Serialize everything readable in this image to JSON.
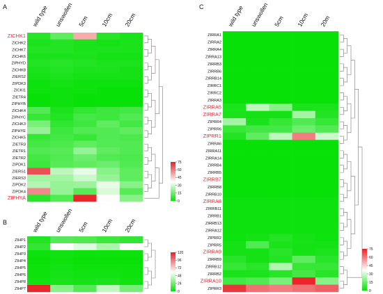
{
  "chart_data": [
    {
      "panel": "A",
      "type": "heatmap",
      "columns": [
        "wild type",
        "unswollen",
        "5cm",
        "10cm",
        "20cm"
      ],
      "rows": [
        "ZICHK1",
        "ZICHK2",
        "ZICHK7",
        "ZICHK6",
        "ZIPHYD",
        "ZICHK8",
        "ZIERS2",
        "ZIPDK3",
        "ZICKI1",
        "ZIETR4",
        "ZIPHYB",
        "ZICHK4",
        "ZIPHYC",
        "ZICHK3",
        "ZIPHYE",
        "ZICHK5",
        "ZIETR3",
        "ZIETR1",
        "ZIETR2",
        "ZIPDK1",
        "ZIERS1",
        "ZIERS3",
        "ZIPDK2",
        "ZIPDK4",
        "ZIPHYA"
      ],
      "highlighted_rows": [
        "ZICHK1",
        "ZIPHYA"
      ],
      "values": [
        [
          6,
          14,
          52,
          6,
          4
        ],
        [
          4,
          5,
          4,
          3,
          4
        ],
        [
          5,
          5,
          4,
          4,
          4
        ],
        [
          4,
          4,
          4,
          3,
          3
        ],
        [
          5,
          6,
          5,
          4,
          4
        ],
        [
          4,
          5,
          4,
          4,
          3
        ],
        [
          3,
          4,
          3,
          3,
          3
        ],
        [
          2,
          3,
          2,
          2,
          2
        ],
        [
          2,
          2,
          2,
          1,
          1
        ],
        [
          1,
          2,
          1,
          1,
          1
        ],
        [
          1,
          2,
          1,
          1,
          1
        ],
        [
          12,
          4,
          7,
          9,
          10
        ],
        [
          8,
          5,
          10,
          9,
          12
        ],
        [
          18,
          7,
          9,
          14,
          10
        ],
        [
          22,
          9,
          12,
          12,
          14
        ],
        [
          8,
          10,
          8,
          12,
          11
        ],
        [
          10,
          11,
          14,
          12,
          12
        ],
        [
          12,
          13,
          22,
          14,
          12
        ],
        [
          10,
          12,
          16,
          12,
          11
        ],
        [
          9,
          13,
          14,
          16,
          12
        ],
        [
          68,
          28,
          34,
          20,
          14
        ],
        [
          24,
          24,
          30,
          22,
          14
        ],
        [
          26,
          22,
          23,
          34,
          20
        ],
        [
          58,
          22,
          13,
          32,
          13
        ],
        [
          6,
          12,
          75,
          38,
          20
        ]
      ],
      "scale": {
        "min": 0,
        "max": 75,
        "ticks": [
          75,
          60,
          45,
          30,
          15,
          0
        ]
      }
    },
    {
      "panel": "B",
      "type": "heatmap",
      "columns": [
        "wild type",
        "unswollen",
        "5cm",
        "10cm",
        "20cm"
      ],
      "rows": [
        "ZIHP1",
        "ZIHP2",
        "ZIHP3",
        "ZIHP4",
        "ZIHP5",
        "ZIHP6",
        "ZIHP8",
        "ZIHP7"
      ],
      "highlighted_rows": [],
      "values": [
        [
          8,
          20,
          18,
          14,
          12
        ],
        [
          12,
          60,
          52,
          40,
          60
        ],
        [
          3,
          4,
          3,
          3,
          3
        ],
        [
          2,
          3,
          2,
          2,
          2
        ],
        [
          3,
          4,
          3,
          3,
          3
        ],
        [
          3,
          5,
          4,
          4,
          3
        ],
        [
          4,
          6,
          5,
          6,
          4
        ],
        [
          120,
          32,
          20,
          45,
          28
        ]
      ],
      "scale": {
        "min": 0,
        "max": 120,
        "ticks": [
          120,
          96,
          72,
          48,
          24,
          0
        ]
      }
    },
    {
      "panel": "C",
      "type": "heatmap",
      "columns": [
        "wild type",
        "unswollen",
        "5cm",
        "10cm",
        "20m"
      ],
      "rows": [
        "ZIRRA1",
        "ZIRRA2",
        "ZIRRA4",
        "ZIRRA13",
        "ZIRRB3",
        "ZIRRB6",
        "ZIRRB14",
        "ZIRRC1",
        "ZIRRC2",
        "ZIRRA3",
        "ZIRRA5",
        "ZIRRA7",
        "ZIPRR4",
        "ZIPRR6",
        "ZIPRR1",
        "ZIRRA6",
        "ZIRRA11",
        "ZIRRA14",
        "ZIRRB4",
        "ZIRRB5",
        "ZIRRB7",
        "ZIRRB8",
        "ZIRRB10",
        "ZIRRA8",
        "ZIRRB11",
        "ZIRRB1",
        "ZIRRB13",
        "ZIRRA12",
        "ZIPRR2",
        "ZIPRR5",
        "ZIRRA9",
        "ZIRRB9",
        "ZIRRB12",
        "ZIRRB2",
        "ZIRRA10",
        "ZIPRR3"
      ],
      "highlighted_rows": [
        "ZIRRA5",
        "ZIRRA7",
        "ZIPRR1",
        "ZIRRB7",
        "ZIRRA8",
        "ZIRRA9",
        "ZIRRA10"
      ],
      "values": [
        [
          1,
          1,
          1,
          1,
          1
        ],
        [
          1,
          1,
          1,
          1,
          1
        ],
        [
          1,
          1,
          1,
          1,
          1
        ],
        [
          1,
          1,
          1,
          1,
          1
        ],
        [
          1,
          1,
          1,
          1,
          1
        ],
        [
          1,
          1,
          1,
          1,
          1
        ],
        [
          1,
          1,
          1,
          1,
          1
        ],
        [
          1,
          1,
          1,
          1,
          1
        ],
        [
          1,
          1,
          1,
          1,
          1
        ],
        [
          1,
          1,
          1,
          1,
          1
        ],
        [
          4,
          28,
          20,
          4,
          4
        ],
        [
          4,
          3,
          3,
          24,
          5
        ],
        [
          24,
          4,
          8,
          12,
          8
        ],
        [
          8,
          10,
          10,
          16,
          12
        ],
        [
          5,
          14,
          28,
          60,
          30
        ],
        [
          1,
          1,
          1,
          1,
          1
        ],
        [
          1,
          1,
          1,
          1,
          1
        ],
        [
          1,
          1,
          1,
          1,
          1
        ],
        [
          1,
          1,
          1,
          1,
          1
        ],
        [
          1,
          1,
          1,
          1,
          1
        ],
        [
          1,
          1,
          1,
          1,
          1
        ],
        [
          1,
          1,
          1,
          1,
          1
        ],
        [
          1,
          1,
          1,
          1,
          1
        ],
        [
          2,
          2,
          2,
          2,
          2
        ],
        [
          2,
          2,
          2,
          2,
          2
        ],
        [
          2,
          2,
          2,
          2,
          2
        ],
        [
          2,
          2,
          2,
          2,
          2
        ],
        [
          2,
          2,
          2,
          2,
          2
        ],
        [
          2,
          3,
          5,
          3,
          2
        ],
        [
          3,
          12,
          4,
          3,
          3
        ],
        [
          3,
          3,
          6,
          3,
          4
        ],
        [
          6,
          3,
          5,
          14,
          6
        ],
        [
          8,
          6,
          26,
          8,
          8
        ],
        [
          4,
          4,
          6,
          10,
          6
        ],
        [
          10,
          12,
          18,
          75,
          20
        ],
        [
          72,
          62,
          60,
          62,
          65
        ]
      ],
      "scale": {
        "min": 0,
        "max": 75,
        "ticks": [
          75,
          60,
          45,
          30,
          15,
          0
        ]
      }
    }
  ],
  "colors": {
    "low": "#00e000",
    "mid": "#ffffff",
    "high": "#e8262b",
    "highlight_label": "#e8262b"
  }
}
